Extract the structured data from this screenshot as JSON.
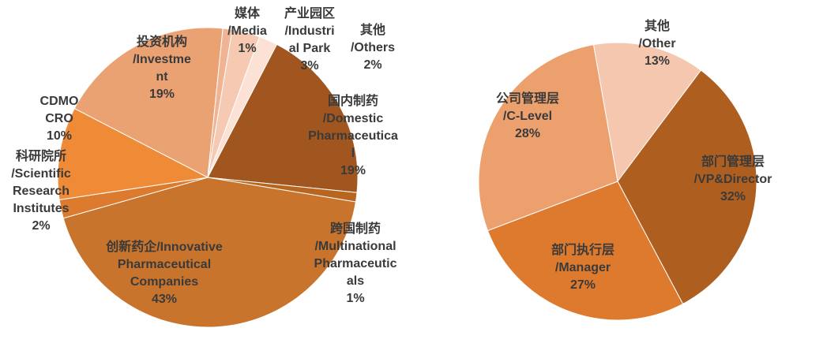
{
  "chart_data": [
    {
      "type": "pie",
      "categories": [
        "国内制药\n/Domestic\nPharmaceutica\nl",
        "跨国制药\n/Multinational\nPharmaceutic\nals",
        "创新药企/Innovative\nPharmaceutical\nCompanies",
        "科研院所\n/Scientific\nResearch\nInstitutes",
        "CDMO\nCRO",
        "投资机构\n/Investme\nnt",
        "媒体\n/Media",
        "产业园区\n/Industri\nal Park",
        "其他\n/Others"
      ],
      "values": [
        19,
        1,
        43,
        2,
        10,
        19,
        1,
        3,
        2
      ],
      "value_labels": [
        "19%",
        "1%",
        "43%",
        "2%",
        "10%",
        "19%",
        "1%",
        "3%",
        "2%"
      ],
      "colors": [
        "#a0561e",
        "#b8651f",
        "#c8742c",
        "#dc7a2e",
        "#ef8a36",
        "#eba273",
        "#f0b494",
        "#f5c9b2",
        "#fbe2d4"
      ]
    },
    {
      "type": "pie",
      "categories": [
        "其他\n/Other",
        "部门管理层\n/VP&Director",
        "部门执行层\n/Manager",
        "公司管理层\n/C-Level"
      ],
      "values": [
        13,
        32,
        27,
        28
      ],
      "value_labels": [
        "13%",
        "32%",
        "27%",
        "28%"
      ],
      "colors": [
        "#f5c7ae",
        "#ae5f20",
        "#de7a2e",
        "#eca06d"
      ]
    }
  ]
}
